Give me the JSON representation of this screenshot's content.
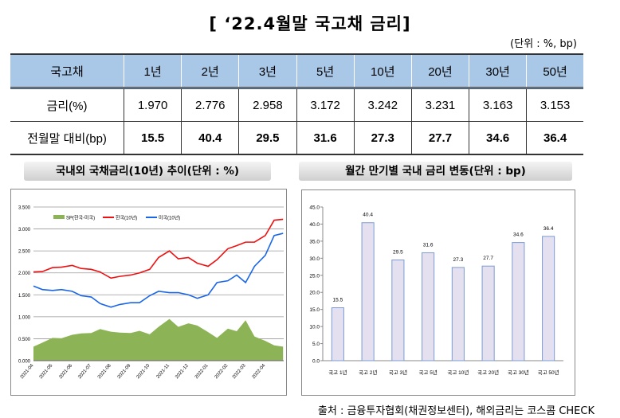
{
  "title": "[ ‘22.4월말  국고채  금리]",
  "unit": "(단위 : %, bp)",
  "table": {
    "headers": [
      "국고채",
      "1년",
      "2년",
      "3년",
      "5년",
      "10년",
      "20년",
      "30년",
      "50년"
    ],
    "rows": [
      {
        "label": "금리(%)",
        "values": [
          "1.970",
          "2.776",
          "2.958",
          "3.172",
          "3.242",
          "3.231",
          "3.163",
          "3.153"
        ]
      },
      {
        "label": "전월말 대비(bp)",
        "values": [
          "15.5",
          "40.4",
          "29.5",
          "31.6",
          "27.3",
          "27.7",
          "34.6",
          "36.4"
        ]
      }
    ]
  },
  "left_heading": "국내외 국채금리(10년) 추이(단위 : %)",
  "right_heading": "월간 만기별 국내 금리 변동(단위 : bp)",
  "footer": "출처 : 금융투자협회(채권정보센터), 해외금리는 코스콤 CHECK",
  "chart_data": [
    {
      "type": "line",
      "ylim": [
        0,
        3.5
      ],
      "yticks": [
        "0.000",
        "0.500",
        "1.000",
        "1.500",
        "2.000",
        "2.500",
        "3.000",
        "3.500"
      ],
      "xticks": [
        "2021-04",
        "2021-05",
        "2021-06",
        "2021-07",
        "2021-08",
        "2021-09",
        "2021-10",
        "2021-11",
        "2021-12",
        "2022-01",
        "2022-02",
        "2022-03",
        "2022-04"
      ],
      "grid": true,
      "legend": "top-left",
      "x": [
        "2021-04-01",
        "2021-04-15",
        "2021-05-01",
        "2021-05-15",
        "2021-06-01",
        "2021-06-15",
        "2021-07-01",
        "2021-07-15",
        "2021-08-01",
        "2021-08-15",
        "2021-09-01",
        "2021-09-15",
        "2021-10-01",
        "2021-10-15",
        "2021-11-01",
        "2021-11-15",
        "2021-12-01",
        "2021-12-15",
        "2022-01-01",
        "2022-01-15",
        "2022-02-01",
        "2022-02-15",
        "2022-03-01",
        "2022-03-15",
        "2022-04-01",
        "2022-04-15",
        "2022-04-29"
      ],
      "series": [
        {
          "name": "SP(한국-미국)",
          "kind": "area",
          "color": "#8db357",
          "values": [
            0.32,
            0.41,
            0.52,
            0.51,
            0.59,
            0.62,
            0.63,
            0.72,
            0.66,
            0.64,
            0.63,
            0.68,
            0.6,
            0.77,
            0.95,
            0.77,
            0.85,
            0.8,
            0.65,
            0.52,
            0.73,
            0.67,
            0.92,
            0.55,
            0.45,
            0.35,
            0.32
          ]
        },
        {
          "name": "한국(10년)",
          "kind": "line",
          "color": "#ee1111",
          "values": [
            2.02,
            2.03,
            2.12,
            2.13,
            2.17,
            2.1,
            2.08,
            2.02,
            1.88,
            1.92,
            1.95,
            2.0,
            2.08,
            2.35,
            2.5,
            2.32,
            2.35,
            2.22,
            2.15,
            2.3,
            2.55,
            2.62,
            2.7,
            2.7,
            2.85,
            3.2,
            3.22
          ]
        },
        {
          "name": "미국(10년)",
          "kind": "line",
          "color": "#1a66e8",
          "values": [
            1.7,
            1.62,
            1.6,
            1.62,
            1.58,
            1.48,
            1.45,
            1.3,
            1.22,
            1.28,
            1.32,
            1.32,
            1.48,
            1.58,
            1.55,
            1.55,
            1.5,
            1.42,
            1.5,
            1.78,
            1.82,
            1.95,
            1.78,
            2.15,
            2.4,
            2.85,
            2.9
          ]
        }
      ]
    },
    {
      "type": "bar",
      "ylim": [
        0,
        45
      ],
      "yticks": [
        "0.0",
        "5.0",
        "10.0",
        "15.0",
        "20.0",
        "25.0",
        "30.0",
        "35.0",
        "40.0",
        "45.0"
      ],
      "categories": [
        "국고 1년",
        "국고 2년",
        "국고 3년",
        "국고 5년",
        "국고 10년",
        "국고 20년",
        "국고 30년",
        "국고 50년"
      ],
      "values": [
        15.5,
        40.4,
        29.5,
        31.6,
        27.3,
        27.7,
        34.6,
        36.4
      ],
      "labels": [
        "15.5",
        "40.4",
        "29.5",
        "31.6",
        "27.3",
        "27.7",
        "34.6",
        "36.4"
      ],
      "bar_color": "#e4e0f0",
      "bar_edge": "#7b9bd0"
    }
  ]
}
